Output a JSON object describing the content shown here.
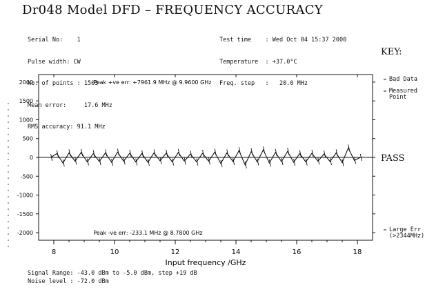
{
  "title": "Dr048  Model DFD  –  FREQUENCY ACCURACY",
  "info_left": [
    "Serial No:    1",
    "Pulse width: CW",
    "No. of points : 1503",
    "Mean error:     17.6 MHz",
    "RMS accuracy: 91.1 MHz"
  ],
  "info_right": [
    "Test time    : Wed Oct 04 15:37 2000",
    "Temperature  : +37.0°C",
    "Freq. step   :   20.0 MHz"
  ],
  "key": {
    "heading": "KEY:",
    "items": [
      "Bad Data",
      "Measured\nPoint",
      "Large Err\n(>2344MHz)"
    ]
  },
  "status": "PASS",
  "footer": [
    "Signal Range: -43.0 dBm to -5.0 dBm, step +19 dB",
    "Noise level : -72.0 dBm"
  ],
  "chart_data": {
    "type": "line",
    "xlabel": "Input frequency /GHz",
    "ylabel": "",
    "xlim": [
      7.5,
      18.5
    ],
    "ylim": [
      -2200,
      2200
    ],
    "x_ticks": [
      8,
      10,
      12,
      14,
      16,
      18
    ],
    "y_ticks": [
      2000,
      1500,
      1000,
      500,
      0,
      -500,
      -1000,
      -1500,
      -2000
    ],
    "annotations": [
      "Peak +ve err: +7961.9 MHz @ 9.9600 GHz",
      "Peak -ve err: -233.1 MHz @ 8.7800 GHz"
    ],
    "x": [
      7.9,
      8.1,
      8.3,
      8.5,
      8.7,
      8.9,
      9.1,
      9.3,
      9.5,
      9.7,
      9.9,
      10.1,
      10.3,
      10.5,
      10.7,
      10.9,
      11.1,
      11.3,
      11.5,
      11.7,
      11.9,
      12.1,
      12.3,
      12.5,
      12.7,
      12.9,
      13.1,
      13.3,
      13.5,
      13.7,
      13.9,
      14.1,
      14.3,
      14.5,
      14.7,
      14.9,
      15.1,
      15.3,
      15.5,
      15.7,
      15.9,
      16.1,
      16.3,
      16.5,
      16.7,
      16.9,
      17.1,
      17.3,
      17.5,
      17.7,
      17.9,
      18.1
    ],
    "y": [
      0,
      100,
      -150,
      120,
      -100,
      130,
      -120,
      100,
      -110,
      120,
      -130,
      140,
      -100,
      110,
      -120,
      100,
      -130,
      120,
      -90,
      110,
      -120,
      130,
      -100,
      90,
      -120,
      110,
      -100,
      140,
      -160,
      120,
      -110,
      180,
      -200,
      150,
      -120,
      200,
      -150,
      130,
      -110,
      160,
      -130,
      100,
      -120,
      110,
      -100,
      90,
      -110,
      120,
      -140,
      250,
      -80,
      0
    ]
  }
}
